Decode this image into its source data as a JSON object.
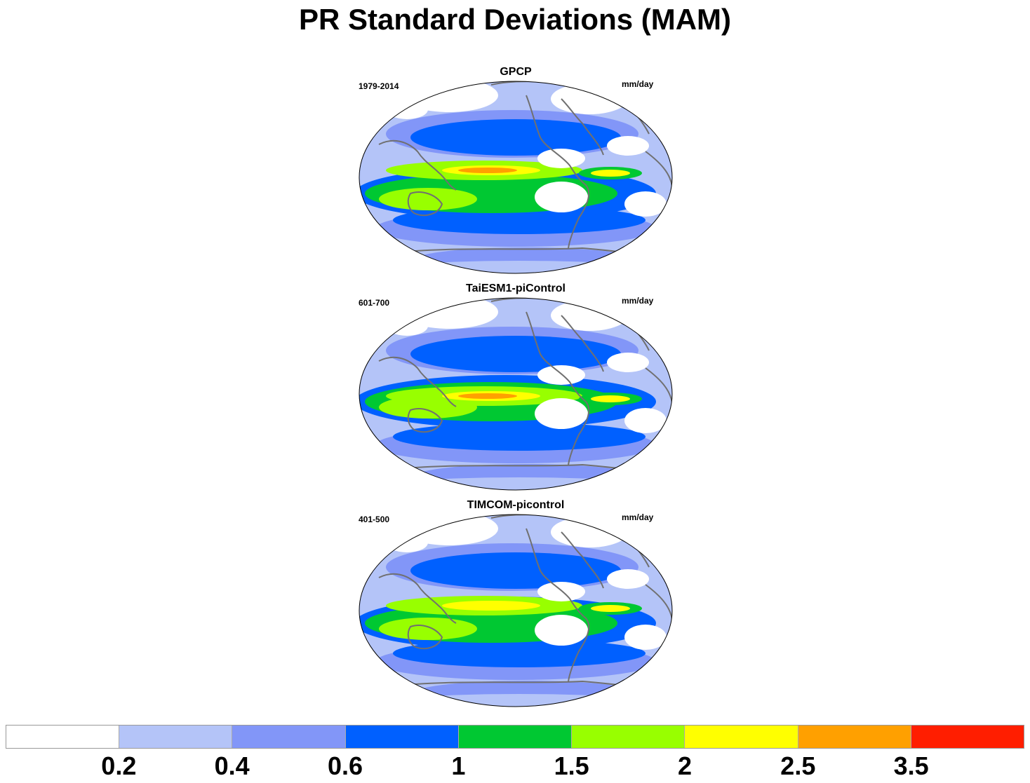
{
  "title": "PR Standard Deviations (MAM)",
  "colors": {
    "white": "#ffffff",
    "lightblue": "#b4c4f8",
    "medblue": "#8296f8",
    "blue": "#0060ff",
    "green": "#00c832",
    "lime": "#98ff00",
    "yellow": "#ffff00",
    "orange": "#ffa000",
    "red": "#ff1e00",
    "coast": "#707070"
  },
  "panels": [
    {
      "title": "GPCP",
      "period": "1979-2014",
      "units": "mm/day"
    },
    {
      "title": "TaiESM1-piControl",
      "period": "601-700",
      "units": "mm/day"
    },
    {
      "title": "TIMCOM-picontrol",
      "period": "401-500",
      "units": "mm/day"
    }
  ],
  "colorbar": {
    "fills": [
      "#ffffff",
      "#b4c4f8",
      "#8296f8",
      "#0060ff",
      "#00c832",
      "#98ff00",
      "#ffff00",
      "#ffa000",
      "#ff1e00"
    ],
    "labels": [
      "0.2",
      "0.4",
      "0.6",
      "1",
      "1.5",
      "2",
      "2.5",
      "3.5"
    ]
  }
}
